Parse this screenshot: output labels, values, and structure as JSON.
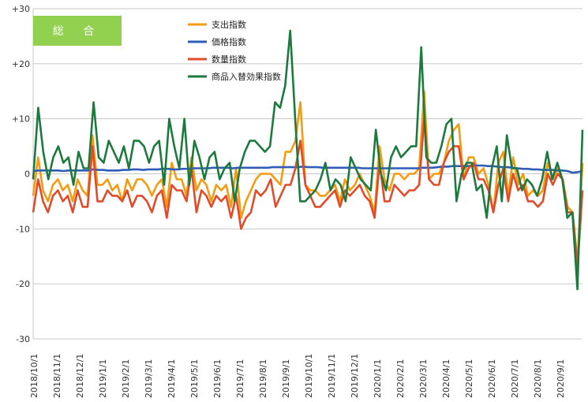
{
  "chart_data": {
    "type": "line",
    "title": "総 合",
    "badge_color": "#92d050",
    "ylim": [
      -30,
      30
    ],
    "y_ticks": [
      "+30",
      "+20",
      "+10",
      "0",
      "-10",
      "-20",
      "-30"
    ],
    "x_ticks": [
      "2018/10/1",
      "2018/11/1",
      "2018/12/1",
      "2019/1/1",
      "2019/2/1",
      "2019/3/1",
      "2019/4/1",
      "2019/5/1",
      "2019/6/1",
      "2019/7/1",
      "2019/8/1",
      "2019/9/1",
      "2019/10/1",
      "2019/11/1",
      "2019/12/1",
      "2020/1/1",
      "2020/2/1",
      "2020/3/1",
      "2020/4/1",
      "2020/5/1",
      "2020/6/1",
      "2020/7/1",
      "2020/8/1",
      "2020/9/1"
    ],
    "grid": true,
    "legend_placement": "top-center",
    "series": [
      {
        "name": "支出指数",
        "color": "#f39c12",
        "values": [
          -4,
          3,
          -3,
          -5,
          -2,
          -1,
          -3,
          -2,
          -5,
          -1,
          -3,
          -4,
          7,
          -2,
          -2,
          -1,
          -3,
          -2,
          -5,
          -1,
          -3,
          -1,
          -1,
          -2,
          -4,
          -2,
          -1,
          -6,
          2,
          -1,
          -1,
          -4,
          3,
          -3,
          -1,
          -2,
          -5,
          -2,
          -3,
          -2,
          -6,
          1,
          -8,
          -5,
          -3,
          -1,
          0,
          0,
          0,
          -1,
          -2,
          4,
          4,
          6,
          13,
          -2,
          -3,
          -3,
          -4,
          -4,
          -3,
          -2,
          -5,
          -1,
          -3,
          -2,
          0,
          -2,
          -4,
          -7,
          5,
          -1,
          -3,
          0,
          0,
          -1,
          0,
          0,
          1,
          15,
          -1,
          0,
          0,
          2,
          6,
          8,
          9,
          -1,
          3,
          3,
          0,
          1,
          -2,
          -7,
          2,
          4,
          -4,
          3,
          -2,
          0,
          -4,
          -3,
          -4,
          -3,
          2,
          -1,
          1,
          -1,
          -6,
          -7,
          -16,
          2
        ]
      },
      {
        "name": "価格指数",
        "color": "#2e5cb8",
        "values": [
          0.5,
          0.6,
          0.6,
          0.6,
          0.6,
          0.6,
          0.5,
          0.6,
          0.6,
          0.6,
          0.6,
          0.6,
          0.8,
          0.7,
          0.7,
          0.6,
          0.6,
          0.6,
          0.7,
          0.7,
          0.8,
          0.8,
          0.7,
          0.8,
          0.8,
          0.8,
          0.9,
          0.9,
          0.8,
          0.8,
          0.9,
          0.9,
          1,
          1,
          1,
          1,
          1.1,
          1.1,
          1.1,
          1.1,
          1,
          1.1,
          1.1,
          1.1,
          1.1,
          1.1,
          1.1,
          1.1,
          1.2,
          1.2,
          1.2,
          1.2,
          1.2,
          1.2,
          1.3,
          1.2,
          1.2,
          1.2,
          1.1,
          1.1,
          1.1,
          1.1,
          1.1,
          1.1,
          1.1,
          1.1,
          1,
          1,
          1,
          1,
          1,
          1,
          1,
          1,
          1,
          1,
          1,
          1,
          1.1,
          1.1,
          1.1,
          1.2,
          1.3,
          1.3,
          1.4,
          1.4,
          1.4,
          1.4,
          1.5,
          1.5,
          1.5,
          1.4,
          1.4,
          1.3,
          1.2,
          1.2,
          1.1,
          1,
          0.9,
          0.9,
          0.8,
          0.8,
          0.7,
          0.7,
          0.7,
          0.6,
          0.6,
          0.5,
          0.2,
          0.3,
          0.5
        ]
      },
      {
        "name": "数量指数",
        "color": "#e04b2a",
        "values": [
          -7,
          -1,
          -5,
          -7,
          -4,
          -3,
          -5,
          -4,
          -7,
          -3,
          -6,
          -6,
          5,
          -5,
          -5,
          -3,
          -4,
          -4,
          -5,
          -3,
          -6,
          -4,
          -4,
          -5,
          -7,
          -4,
          -3,
          -8,
          -2,
          -3,
          -3,
          -5,
          1,
          -7,
          -3,
          -4,
          -6,
          -4,
          -5,
          -4,
          -8,
          -4,
          -10,
          -8,
          -7,
          -3,
          -4,
          -3,
          -1,
          -6,
          -4,
          -2,
          -2,
          1,
          6,
          -2,
          -4,
          -6,
          -6,
          -5,
          -4,
          -3,
          -6,
          -3,
          -4,
          -3,
          -2,
          -4,
          -5,
          -8,
          2,
          -5,
          -5,
          -2,
          -3,
          -4,
          -3,
          -3,
          -2,
          10,
          -1,
          -2,
          -2,
          2,
          4,
          5,
          5,
          -1,
          1,
          2,
          -1,
          -1,
          -3,
          -7,
          -2,
          1,
          -5,
          0,
          -3,
          -2,
          -5,
          -5,
          -6,
          -5,
          0,
          -2,
          0,
          -1,
          -7,
          -7,
          -17,
          -3
        ]
      },
      {
        "name": "商品入替効果指数",
        "color": "#1d7a3e",
        "values": [
          -1,
          12,
          4,
          -1,
          3,
          5,
          2,
          3,
          -2,
          4,
          1,
          1,
          13,
          3,
          2,
          6,
          4,
          2,
          5,
          1,
          6,
          6,
          5,
          2,
          5,
          6,
          -2,
          10,
          5,
          1,
          10,
          -2,
          6,
          3,
          -1,
          3,
          4,
          -1,
          1,
          2,
          -5,
          1,
          4,
          6,
          6,
          5,
          4,
          5,
          13,
          12,
          16,
          26,
          10,
          -5,
          -5,
          -4,
          -3,
          -1,
          2,
          -3,
          -1,
          -2,
          -5,
          3,
          1,
          -1,
          -2,
          -3,
          8,
          0,
          -3,
          3,
          5,
          3,
          4,
          5,
          5,
          23,
          3,
          2,
          2,
          5,
          9,
          10,
          -5,
          0,
          2,
          2,
          -3,
          -2,
          -8,
          1,
          5,
          -5,
          7,
          1,
          1,
          -3,
          -1,
          -2,
          -4,
          -1,
          4,
          -1,
          2,
          -1,
          -8,
          -7,
          -21,
          8
        ]
      }
    ]
  }
}
